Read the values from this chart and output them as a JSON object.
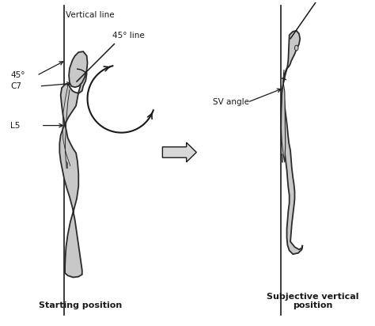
{
  "bg_color": "#ffffff",
  "body_fill": "#c8c8c8",
  "body_edge": "#2a2a2a",
  "line_color": "#1a1a1a",
  "text_color": "#1a1a1a",
  "labels": {
    "vertical_line": "Vertical line",
    "45_line": "45° line",
    "45_angle": "45°",
    "C7": "C7",
    "L5": "L5",
    "SV_angle": "SV angle",
    "starting_position": "Starting position",
    "subjective_vertical": "Subjective vertical\nposition"
  },
  "figsize": [
    4.74,
    4.12
  ],
  "dpi": 100
}
